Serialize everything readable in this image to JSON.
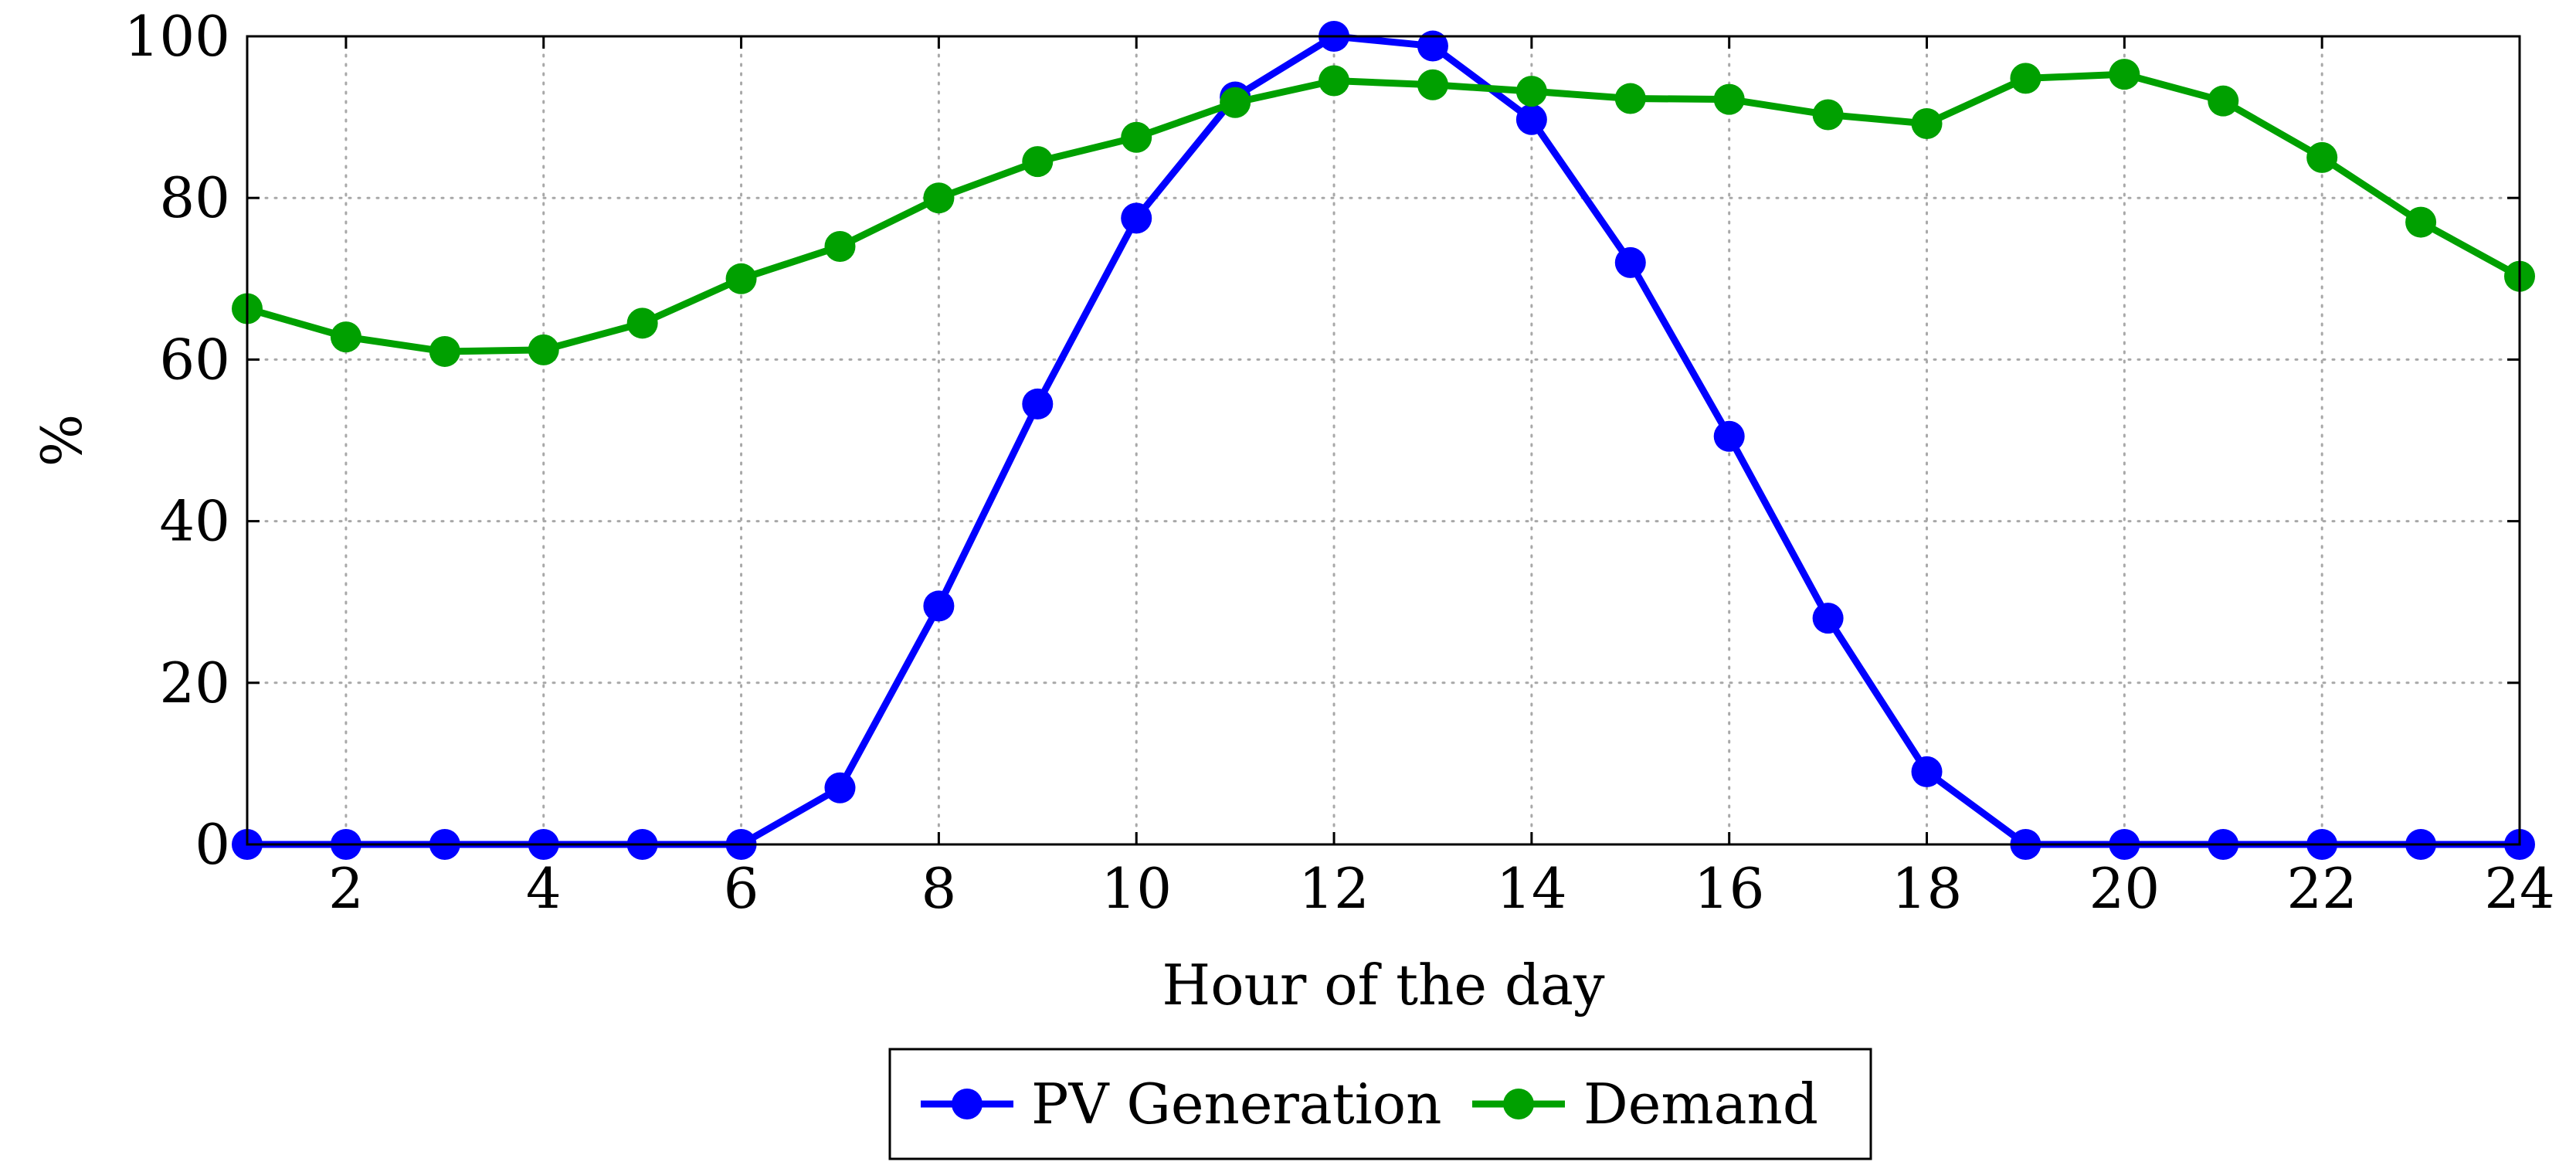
{
  "chart_data": {
    "type": "line",
    "title": "",
    "xlabel": "Hour of the day",
    "ylabel": "%",
    "xlim": [
      1,
      24
    ],
    "ylim": [
      0,
      100
    ],
    "grid": true,
    "grid_style": "dotted",
    "legend_position": "bottom-center",
    "x_ticks": [
      2,
      4,
      6,
      8,
      10,
      12,
      14,
      16,
      18,
      20,
      22,
      24
    ],
    "x_tick_labels": [
      "2",
      "4",
      "6",
      "8",
      "10",
      "12",
      "14",
      "16",
      "18",
      "20",
      "22",
      "24"
    ],
    "y_ticks": [
      0,
      20,
      40,
      60,
      80,
      100
    ],
    "y_tick_labels": [
      "0",
      "20",
      "40",
      "60",
      "80",
      "100"
    ],
    "x": [
      1,
      2,
      3,
      4,
      5,
      6,
      7,
      8,
      9,
      10,
      11,
      12,
      13,
      14,
      15,
      16,
      17,
      18,
      19,
      20,
      21,
      22,
      23,
      24
    ],
    "series": [
      {
        "name": "PV Generation",
        "color": "#0000ff",
        "values": [
          0,
          0,
          0,
          0,
          0,
          0,
          7,
          29.5,
          54.5,
          77.5,
          92.5,
          100,
          98.8,
          89.7,
          72,
          50.5,
          28,
          9,
          0,
          0,
          0,
          0,
          0,
          0
        ]
      },
      {
        "name": "Demand",
        "color": "#00a000",
        "values": [
          66.3,
          62.8,
          61,
          61.2,
          64.5,
          70,
          74,
          80,
          84.5,
          87.5,
          91.8,
          94.5,
          94,
          93.2,
          92.3,
          92.2,
          90.3,
          89.2,
          94.8,
          95.3,
          92,
          85,
          77,
          70.3
        ]
      }
    ]
  }
}
